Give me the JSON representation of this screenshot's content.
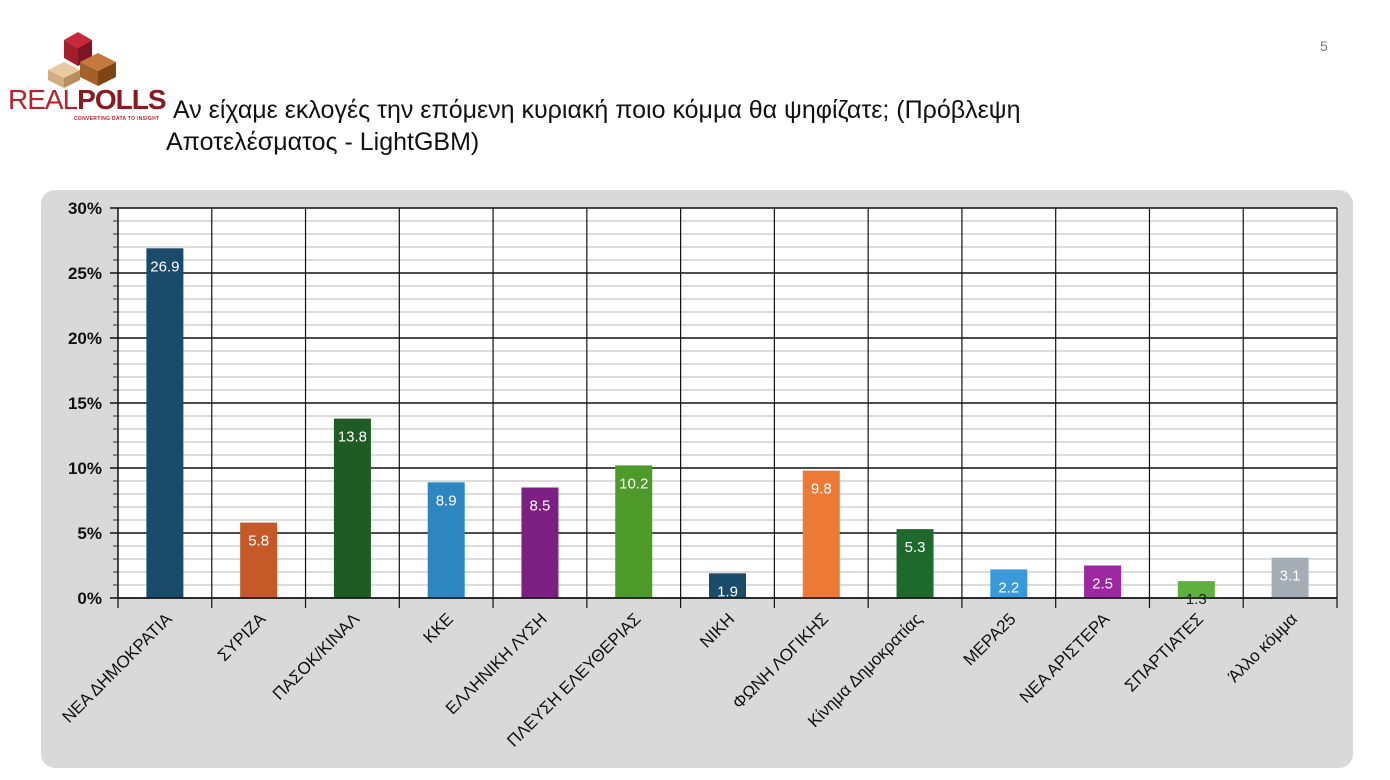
{
  "logo": {
    "word_part1": "REAL",
    "word_part2": "POLLS",
    "tagline": "CONVERTING DATA TO INSIGHT"
  },
  "page_number": "5",
  "title_line1": "Αν είχαμε εκλογές την επόμενη κυριακή ποιο κόμμα θα ψηφίζατε; (Πρόβλεψη",
  "title_line2": "Αποτελέσματος - LightGBM)",
  "chart_data": {
    "type": "bar",
    "categories": [
      "ΝΕΑ ΔΗΜΟΚΡΑΤΙΑ",
      "ΣΥΡΙΖΑ",
      "ΠΑΣΟΚ/ΚΙΝΑΛ",
      "ΚΚΕ",
      "ΕΛΛΗΝΙΚΗ ΛΥΣΗ",
      "ΠΛΕΥΣΗ ΕΛΕΥΘΕΡΙΑΣ",
      "ΝΙΚΗ",
      "ΦΩΝΗ ΛΟΓΙΚΗΣ",
      "Κίνημα Δημοκρατίας",
      "ΜΕΡΑ25",
      "ΝΕΑ ΑΡΙΣΤΕΡΑ",
      "ΣΠΑΡΤΙΑΤΕΣ",
      "Άλλο κόμμα"
    ],
    "values": [
      26.9,
      5.8,
      13.8,
      8.9,
      8.5,
      10.2,
      1.9,
      9.8,
      5.3,
      2.2,
      2.5,
      1.3,
      3.1
    ],
    "data_labels": [
      "26.9",
      "5.8",
      "13.8",
      "8.9",
      "8.5",
      "10.2",
      "1.9",
      "9.8",
      "5.3",
      "2.2",
      "2.5",
      "1.3",
      "3.1"
    ],
    "colors": [
      "#1b4b6b",
      "#c55a28",
      "#1e5c24",
      "#2e86c1",
      "#7b1f82",
      "#4d9a2a",
      "#1b4b6b",
      "#ec7a36",
      "#1e6a2c",
      "#3a9ad9",
      "#9c27a0",
      "#5fb03c",
      "#a3adb6"
    ],
    "label_colors": [
      "#ffffff",
      "#ffffff",
      "#ffffff",
      "#ffffff",
      "#ffffff",
      "#ffffff",
      "#ffffff",
      "#ffffff",
      "#ffffff",
      "#ffffff",
      "#ffffff",
      "#222222",
      "#ffffff"
    ],
    "ylim": [
      0,
      30
    ],
    "yticks": [
      0,
      5,
      10,
      15,
      20,
      25,
      30
    ],
    "ytick_labels": [
      "0%",
      "5%",
      "10%",
      "15%",
      "20%",
      "25%",
      "30%"
    ],
    "minor_grid_step": 1,
    "grid": true,
    "title": "",
    "xlabel": "",
    "ylabel": ""
  }
}
